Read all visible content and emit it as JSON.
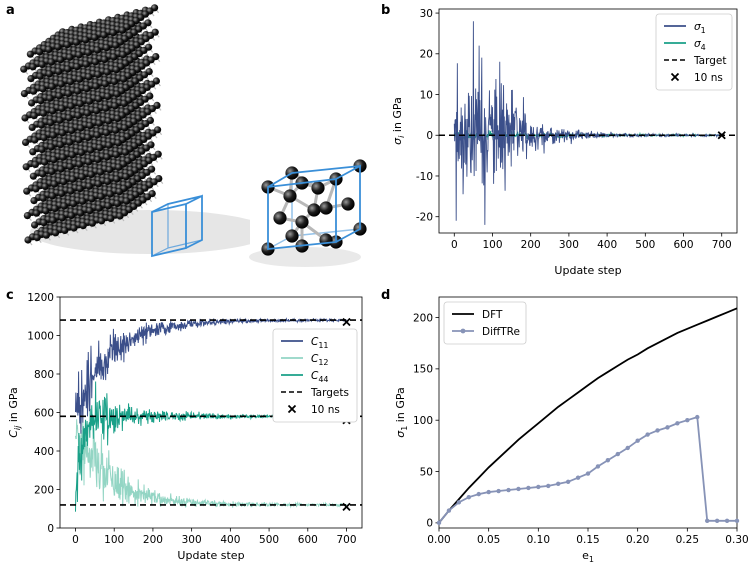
{
  "panels": {
    "a": "a",
    "b": "b",
    "c": "c",
    "d": "d"
  },
  "colors": {
    "dark_blue": "#3b4f8a",
    "teal": "#1aa088",
    "mint": "#93d5c4",
    "lavender": "#8793b7",
    "cube_edge": "#3a8fd8",
    "atom": "#1d1d1d"
  },
  "chart_data": [
    {
      "panel": "b",
      "type": "line",
      "xlabel": "Update step",
      "ylabel": "σ_i in GPa",
      "xlim": [
        -40,
        740
      ],
      "ylim": [
        -24,
        31
      ],
      "xticks": [
        0,
        100,
        200,
        300,
        400,
        500,
        600,
        700
      ],
      "yticks": [
        -20,
        -10,
        0,
        10,
        20,
        30
      ],
      "legend_loc": "upper right",
      "series": [
        {
          "name": "σ1",
          "color": "#3b4f8a",
          "kind": "noisy-decay",
          "center": 0,
          "peak_abs": 28,
          "steps": 700
        },
        {
          "name": "σ4",
          "color": "#1aa088",
          "kind": "noisy-decay",
          "center": 0,
          "peak_abs": 0.6,
          "steps": 700
        },
        {
          "name": "Target",
          "kind": "hline",
          "y": 0,
          "style": "dashed"
        },
        {
          "name": "10 ns",
          "kind": "marker",
          "x": 700,
          "y": 0,
          "marker": "x"
        }
      ],
      "legend": [
        {
          "label": "σ",
          "sub": "1"
        },
        {
          "label": "σ",
          "sub": "4"
        },
        {
          "label": "Target",
          "sub": ""
        },
        {
          "label": "10 ns",
          "sub": ""
        }
      ]
    },
    {
      "panel": "c",
      "type": "line",
      "xlabel": "Update step",
      "ylabel": "C_ij in GPa",
      "xlim": [
        -40,
        740
      ],
      "ylim": [
        0,
        1200
      ],
      "xticks": [
        0,
        100,
        200,
        300,
        400,
        500,
        600,
        700
      ],
      "yticks": [
        0,
        200,
        400,
        600,
        800,
        1000,
        1200
      ],
      "legend_loc": "center right",
      "series": [
        {
          "name": "C11",
          "color": "#3b4f8a",
          "start": 600,
          "target": 1080,
          "tau": 95,
          "noise": 160
        },
        {
          "name": "C12",
          "color": "#93d5c4",
          "start": 500,
          "target": 120,
          "tau": 90,
          "noise": 160
        },
        {
          "name": "C44",
          "color": "#1aa088",
          "start": 200,
          "target": 580,
          "tau": 18,
          "noise": 140
        },
        {
          "name": "Targets",
          "kind": "hlines",
          "values": [
            1080,
            580,
            120
          ],
          "style": "dashed"
        },
        {
          "name": "10 ns",
          "kind": "markers",
          "points": [
            [
              700,
              1070
            ],
            [
              700,
              560
            ],
            [
              700,
              110
            ]
          ],
          "marker": "x"
        }
      ],
      "legend": [
        {
          "label": "C",
          "sub": "11"
        },
        {
          "label": "C",
          "sub": "12"
        },
        {
          "label": "C",
          "sub": "44"
        },
        {
          "label": "Targets",
          "sub": ""
        },
        {
          "label": "10 ns",
          "sub": ""
        }
      ]
    },
    {
      "panel": "d",
      "type": "line",
      "xlabel": "e1",
      "ylabel": "σ1 in GPa",
      "xlim": [
        0.0,
        0.3
      ],
      "ylim": [
        -5,
        220
      ],
      "xticks": [
        0.0,
        0.05,
        0.1,
        0.15,
        0.2,
        0.25,
        0.3
      ],
      "xtick_labels": [
        "0.00",
        "0.05",
        "0.10",
        "0.15",
        "0.20",
        "0.25",
        "0.30"
      ],
      "yticks": [
        0,
        50,
        100,
        150,
        200
      ],
      "legend_loc": "upper left",
      "series": [
        {
          "name": "DFT",
          "color": "#000000",
          "x": [
            0.0,
            0.01,
            0.02,
            0.03,
            0.04,
            0.05,
            0.06,
            0.07,
            0.08,
            0.09,
            0.1,
            0.11,
            0.12,
            0.13,
            0.14,
            0.15,
            0.16,
            0.17,
            0.18,
            0.19,
            0.2,
            0.21,
            0.22,
            0.23,
            0.24,
            0.25,
            0.26,
            0.27,
            0.28,
            0.29,
            0.3
          ],
          "y": [
            0,
            12,
            23,
            34,
            44,
            54,
            63,
            72,
            81,
            89,
            97,
            105,
            113,
            120,
            127,
            134,
            141,
            147,
            153,
            159,
            164,
            170,
            175,
            180,
            185,
            189,
            193,
            197,
            201,
            205,
            209
          ]
        },
        {
          "name": "DiffTRe",
          "color": "#8793b7",
          "x": [
            0.0,
            0.01,
            0.02,
            0.03,
            0.04,
            0.05,
            0.06,
            0.07,
            0.08,
            0.09,
            0.1,
            0.11,
            0.12,
            0.13,
            0.14,
            0.15,
            0.16,
            0.17,
            0.18,
            0.19,
            0.2,
            0.21,
            0.22,
            0.23,
            0.24,
            0.25,
            0.26,
            0.27,
            0.28,
            0.29,
            0.3
          ],
          "y": [
            0,
            12,
            20,
            25,
            28,
            30,
            31,
            32,
            33,
            34,
            35,
            36,
            38,
            40,
            44,
            48,
            55,
            61,
            67,
            73,
            80,
            86,
            90,
            93,
            97,
            100,
            103,
            2,
            2,
            2,
            2
          ]
        }
      ],
      "legend": [
        {
          "label": "DFT",
          "sub": ""
        },
        {
          "label": "DiffTRe",
          "sub": ""
        }
      ]
    }
  ]
}
